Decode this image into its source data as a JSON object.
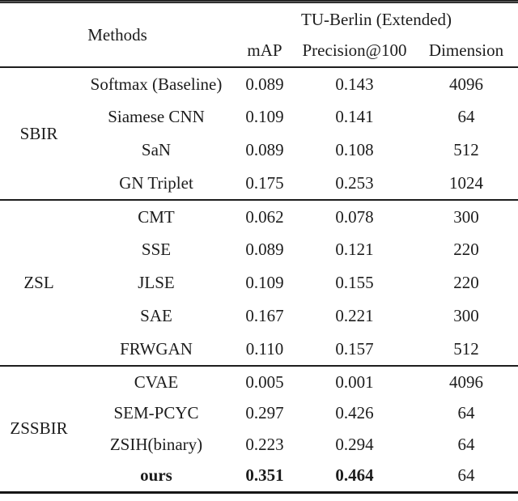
{
  "figure": {
    "header": {
      "methods_label": "Methods",
      "dataset_label": "TU-Berlin (Extended)",
      "columns": [
        "mAP",
        "Precision@100",
        "Dimension"
      ]
    },
    "groups": [
      {
        "name": "SBIR",
        "rows": [
          {
            "method": "Softmax (Baseline)",
            "map": "0.089",
            "precision_at_100": "0.143",
            "dimension": "4096",
            "bold": false
          },
          {
            "method": "Siamese CNN",
            "map": "0.109",
            "precision_at_100": "0.141",
            "dimension": "64",
            "bold": false
          },
          {
            "method": "SaN",
            "map": "0.089",
            "precision_at_100": "0.108",
            "dimension": "512",
            "bold": false
          },
          {
            "method": "GN Triplet",
            "map": "0.175",
            "precision_at_100": "0.253",
            "dimension": "1024",
            "bold": false
          }
        ]
      },
      {
        "name": "ZSL",
        "rows": [
          {
            "method": "CMT",
            "map": "0.062",
            "precision_at_100": "0.078",
            "dimension": "300",
            "bold": false
          },
          {
            "method": "SSE",
            "map": "0.089",
            "precision_at_100": "0.121",
            "dimension": "220",
            "bold": false
          },
          {
            "method": "JLSE",
            "map": "0.109",
            "precision_at_100": "0.155",
            "dimension": "220",
            "bold": false
          },
          {
            "method": "SAE",
            "map": "0.167",
            "precision_at_100": "0.221",
            "dimension": "300",
            "bold": false
          },
          {
            "method": "FRWGAN",
            "map": "0.110",
            "precision_at_100": "0.157",
            "dimension": "512",
            "bold": false
          }
        ]
      },
      {
        "name": "ZSSBIR",
        "rows": [
          {
            "method": "CVAE",
            "map": "0.005",
            "precision_at_100": "0.001",
            "dimension": "4096",
            "bold": false
          },
          {
            "method": "SEM-PCYC",
            "map": "0.297",
            "precision_at_100": "0.426",
            "dimension": "64",
            "bold": false
          },
          {
            "method": "ZSIH(binary)",
            "map": "0.223",
            "precision_at_100": "0.294",
            "dimension": "64",
            "bold": false
          },
          {
            "method": "ours",
            "map": "0.351",
            "precision_at_100": "0.464",
            "dimension": "64",
            "bold": true
          }
        ]
      }
    ],
    "colors": {
      "text": "#1c1c1c",
      "rule": "#161616",
      "background": "#ffffff"
    }
  }
}
